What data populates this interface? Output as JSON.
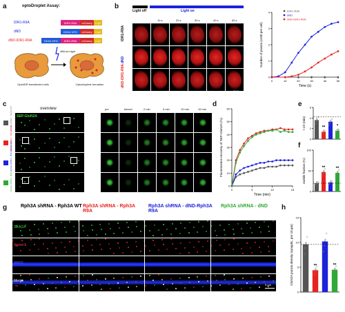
{
  "panel_letters": {
    "a": "a",
    "b": "b",
    "c": "c",
    "d": "d",
    "e": "e",
    "f": "f",
    "g": "g",
    "h": "h"
  },
  "panel_a": {
    "title": "optoDroplet Assay:",
    "rows": [
      {
        "name": "IDR1-R9A",
        "parts": [
          "IDR1-R9A",
          "mCherry",
          "Cry2"
        ]
      },
      {
        "name": "dND",
        "parts": [
          "DDX4 NTD",
          "mCherry",
          "Cry2"
        ]
      },
      {
        "name": "dND-IDR1-R9A",
        "parts": [
          "DDX4 NTD",
          "IDR1-R9A",
          "mCherry",
          "Cry2"
        ]
      }
    ],
    "light_label": "488-nm light",
    "cell1_label": "OptoIDR transfected cells",
    "cell2_label": "Optodroplets formation"
  },
  "panel_b": {
    "light_off": "Light off",
    "light_on": "Light on",
    "timepoints": [
      "10 s",
      "20 s",
      "30 s",
      "40 s",
      "50 s"
    ],
    "rows": [
      "IDR1-R9A",
      "dND",
      "dND-IDR1-R9A"
    ],
    "scale": "10 µm"
  },
  "panel_c": {
    "overview": "overview",
    "timepoints": [
      "pre",
      "bleach",
      "2 min",
      "5 min",
      "10 min",
      "15 min"
    ],
    "channel": "SEP-GluN2A",
    "rows": [
      "Rph3A shRNA - Rph3A WT",
      "Rph3A shRNA - Rph3A R9A",
      "Rph3A shRNA - dND-Rph3A R9A",
      "Rph3A shRNA - dND"
    ],
    "scale1": "2 µm",
    "scale2": "1 µm"
  },
  "panel_g": {
    "headers": [
      "Rph3A shRNA - Rph3A WT",
      "Rph3A shRNA - Rph3A R9A",
      "Rph3A shRNA - dND-Rph3A R9A",
      "Rph3A shRNA - dND"
    ],
    "channels": [
      "GluN2A",
      "Homer1",
      "MAP2",
      "Merge"
    ],
    "scale": "5 µm"
  },
  "colors": {
    "wt": "#555555",
    "r9a": "#e8231f",
    "dnd_r9a": "#1c23d9",
    "dnd": "#2ea836"
  },
  "chart_data": [
    {
      "id": "b",
      "type": "line",
      "xlabel": "Time (s)",
      "ylabel": "Number of puncta (x100 per cell)",
      "xlim": [
        0,
        50
      ],
      "ylim": [
        0,
        4
      ],
      "xticks": [
        0,
        10,
        20,
        30,
        40,
        50
      ],
      "yticks": [
        0,
        1,
        2,
        3,
        4
      ],
      "legend": "top-left",
      "series": [
        {
          "name": "IDR1-R9A",
          "color": "#555555",
          "x": [
            0,
            10,
            20,
            30,
            40,
            50
          ],
          "y": [
            0,
            0,
            0,
            0,
            0,
            0
          ]
        },
        {
          "name": "dND",
          "color": "#1c23d9",
          "x": [
            0,
            5,
            10,
            15,
            20,
            25,
            30,
            35,
            40,
            45,
            50
          ],
          "y": [
            0,
            0.05,
            0.3,
            0.9,
            1.5,
            2.0,
            2.5,
            2.8,
            3.1,
            3.3,
            3.4
          ]
        },
        {
          "name": "dND-IDR1-R9A",
          "color": "#e8231f",
          "x": [
            0,
            10,
            15,
            20,
            25,
            30,
            35,
            40,
            45,
            50
          ],
          "y": [
            0,
            0,
            0.05,
            0.15,
            0.35,
            0.6,
            0.9,
            1.15,
            1.4,
            1.6
          ]
        }
      ]
    },
    {
      "id": "d",
      "type": "line",
      "xlabel": "Time (min)",
      "ylabel": "Fluorescence recovery of SEP-GluN2A (%)",
      "xlim": [
        0,
        15
      ],
      "ylim": [
        0,
        60
      ],
      "xticks": [
        0,
        5,
        10,
        15
      ],
      "yticks": [
        0,
        10,
        20,
        30,
        40,
        50,
        60
      ],
      "series": [
        {
          "name": "Rph3A WT",
          "color": "#555555",
          "x": [
            0,
            1,
            2,
            3,
            4,
            5,
            6,
            7,
            8,
            9,
            10,
            11,
            12,
            13,
            14,
            15
          ],
          "y": [
            0,
            7,
            9,
            10,
            11,
            12,
            13,
            14,
            14,
            15,
            15,
            15,
            16,
            16,
            16,
            16
          ]
        },
        {
          "name": "Rph3A R9A",
          "color": "#e8231f",
          "x": [
            0,
            1,
            2,
            3,
            4,
            5,
            6,
            7,
            8,
            9,
            10,
            11,
            12,
            13,
            14,
            15
          ],
          "y": [
            0,
            20,
            28,
            33,
            37,
            39,
            41,
            42,
            43,
            43,
            44,
            44,
            45,
            44,
            44,
            44
          ]
        },
        {
          "name": "dND-Rph3A R9A",
          "color": "#1c23d9",
          "x": [
            0,
            1,
            2,
            3,
            4,
            5,
            6,
            7,
            8,
            9,
            10,
            11,
            12,
            13,
            14,
            15
          ],
          "y": [
            0,
            9,
            12,
            14,
            15,
            16,
            17,
            18,
            18,
            19,
            19,
            20,
            20,
            20,
            20,
            20
          ]
        },
        {
          "name": "dND",
          "color": "#2ea836",
          "x": [
            0,
            1,
            2,
            3,
            4,
            5,
            6,
            7,
            8,
            9,
            10,
            11,
            12,
            13,
            14,
            15
          ],
          "y": [
            0,
            18,
            26,
            31,
            35,
            38,
            40,
            41,
            42,
            43,
            43,
            44,
            42,
            43,
            42,
            42
          ]
        }
      ]
    },
    {
      "id": "e",
      "type": "bar",
      "ylabel": "t 1/2 (min)",
      "ylim": [
        0,
        6
      ],
      "yticks": [
        0,
        2,
        4,
        6
      ],
      "dashed": 4.2,
      "categories": [
        "WT",
        "R9A",
        "dND-R9A",
        "dND"
      ],
      "values": [
        3.6,
        1.4,
        3.3,
        1.6
      ],
      "colors": [
        "#555555",
        "#e8231f",
        "#1c23d9",
        "#2ea836"
      ],
      "annotations": [
        "",
        "**",
        "",
        "*"
      ]
    },
    {
      "id": "f",
      "type": "bar",
      "ylabel": "mobile fraction (%)",
      "ylim": [
        0,
        100
      ],
      "yticks": [
        0,
        50,
        100
      ],
      "dashed": 20,
      "categories": [
        "WT",
        "R9A",
        "dND-R9A",
        "dND"
      ],
      "values": [
        20,
        47,
        22,
        45
      ],
      "colors": [
        "#555555",
        "#e8231f",
        "#1c23d9",
        "#2ea836"
      ],
      "annotations": [
        "",
        "**",
        "",
        "**"
      ]
    },
    {
      "id": "h",
      "type": "bar",
      "ylabel": "GluN2A puncta density (synaptic, per 10 µm)",
      "ylim": [
        0,
        15
      ],
      "yticks": [
        0,
        5,
        10,
        15
      ],
      "dashed": 9.6,
      "categories": [
        "WT",
        "R9A",
        "dND-R9A",
        "dND"
      ],
      "values": [
        9.6,
        4.4,
        10.2,
        4.5
      ],
      "colors": [
        "#555555",
        "#e8231f",
        "#1c23d9",
        "#2ea836"
      ],
      "annotations": [
        "",
        "**",
        "",
        "**"
      ]
    }
  ]
}
